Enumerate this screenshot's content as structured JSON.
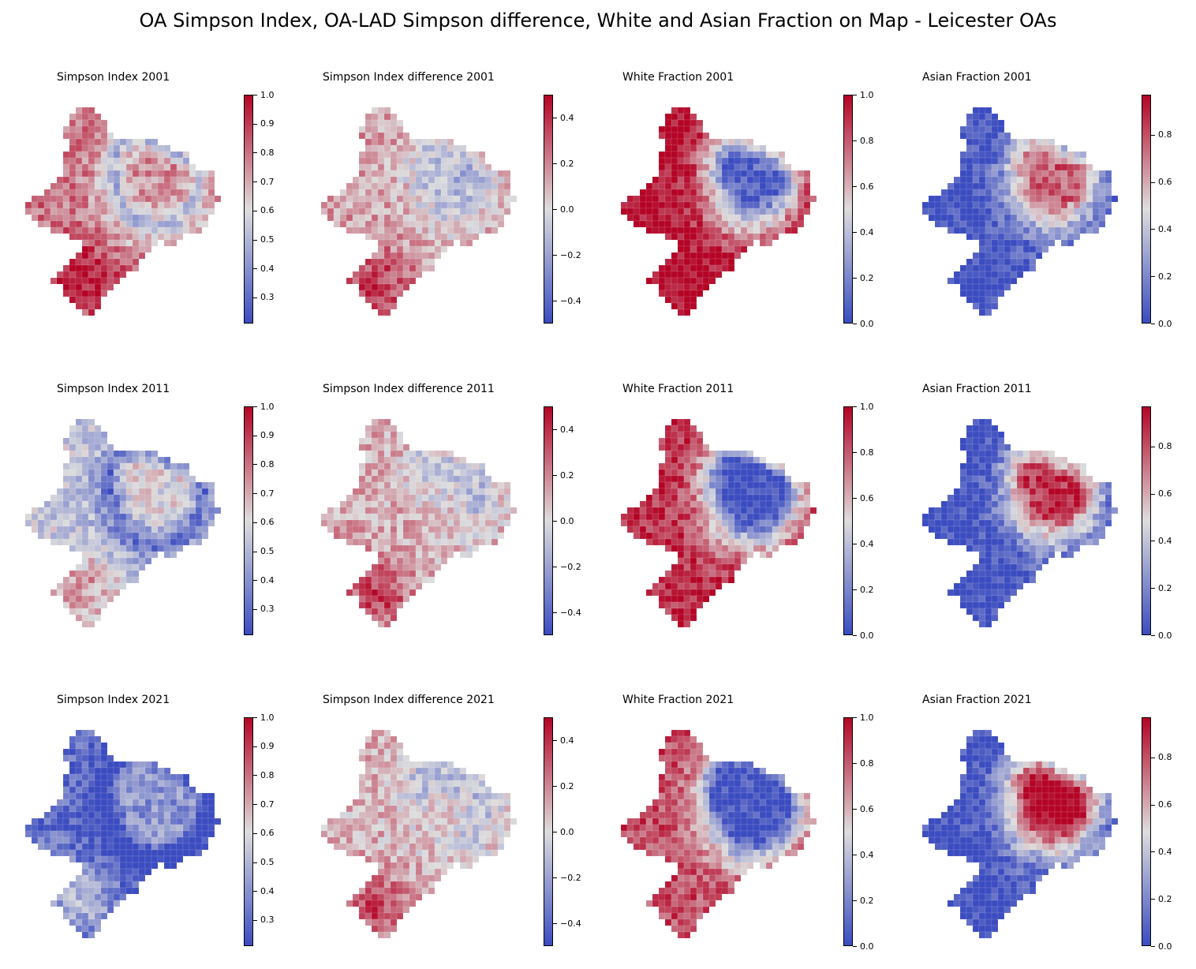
{
  "title": "OA Simpson Index, OA-LAD Simpson difference, White and Asian Fraction on Map - Leicester OAs",
  "colormap": {
    "name": "coolwarm",
    "low": "#3b4cc0",
    "mid": "#dddddd",
    "high": "#b40426"
  },
  "panels": [
    {
      "title": "Simpson Index 2001",
      "metric": "simpson",
      "year": "2001",
      "ticks": [
        "0.3",
        "0.4",
        "0.5",
        "0.6",
        "0.7",
        "0.8",
        "0.9",
        "1.0"
      ]
    },
    {
      "title": "Simpson Index difference 2001",
      "metric": "difference",
      "year": "2001",
      "ticks": [
        "−0.4",
        "−0.2",
        "0.0",
        "0.2",
        "0.4"
      ]
    },
    {
      "title": "White Fraction 2001",
      "metric": "white",
      "year": "2001",
      "ticks": [
        "0.0",
        "0.2",
        "0.4",
        "0.6",
        "0.8",
        "1.0"
      ]
    },
    {
      "title": "Asian Fraction 2001",
      "metric": "asian",
      "year": "2001",
      "ticks": [
        "0.0",
        "0.2",
        "0.4",
        "0.6",
        "0.8"
      ]
    },
    {
      "title": "Simpson Index 2011",
      "metric": "simpson",
      "year": "2011",
      "ticks": [
        "0.3",
        "0.4",
        "0.5",
        "0.6",
        "0.7",
        "0.8",
        "0.9",
        "1.0"
      ]
    },
    {
      "title": "Simpson Index difference 2011",
      "metric": "difference",
      "year": "2011",
      "ticks": [
        "−0.4",
        "−0.2",
        "0.0",
        "0.2",
        "0.4"
      ]
    },
    {
      "title": "White Fraction 2011",
      "metric": "white",
      "year": "2011",
      "ticks": [
        "0.0",
        "0.2",
        "0.4",
        "0.6",
        "0.8",
        "1.0"
      ]
    },
    {
      "title": "Asian Fraction 2011",
      "metric": "asian",
      "year": "2011",
      "ticks": [
        "0.0",
        "0.2",
        "0.4",
        "0.6",
        "0.8"
      ]
    },
    {
      "title": "Simpson Index 2021",
      "metric": "simpson",
      "year": "2021",
      "ticks": [
        "0.3",
        "0.4",
        "0.5",
        "0.6",
        "0.7",
        "0.8",
        "0.9",
        "1.0"
      ]
    },
    {
      "title": "Simpson Index difference 2021",
      "metric": "difference",
      "year": "2021",
      "ticks": [
        "−0.4",
        "−0.2",
        "0.0",
        "0.2",
        "0.4"
      ]
    },
    {
      "title": "White Fraction 2021",
      "metric": "white",
      "year": "2021",
      "ticks": [
        "0.0",
        "0.2",
        "0.4",
        "0.6",
        "0.8",
        "1.0"
      ]
    },
    {
      "title": "Asian Fraction 2021",
      "metric": "asian",
      "year": "2021",
      "ticks": [
        "0.0",
        "0.2",
        "0.4",
        "0.6",
        "0.8"
      ]
    }
  ]
}
